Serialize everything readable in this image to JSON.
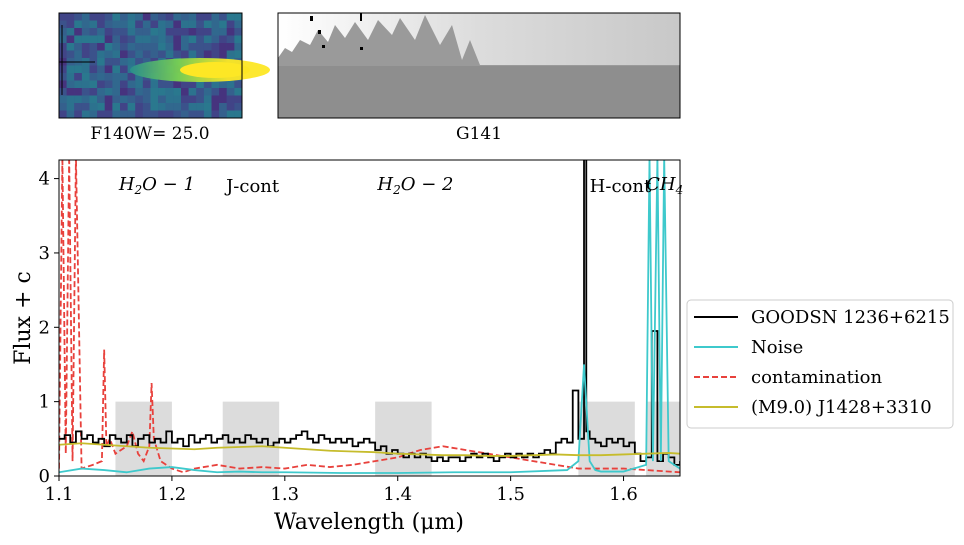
{
  "panels": {
    "image_label": "F140W= 25.0",
    "grism_label": "G141"
  },
  "chart_data": {
    "type": "line",
    "xlabel": "Wavelength (μm)",
    "ylabel": "Flux + c",
    "xlim": [
      1.1,
      1.65
    ],
    "ylim": [
      0,
      4.25
    ],
    "xticks": [
      "1.1",
      "1.2",
      "1.3",
      "1.4",
      "1.5",
      "1.6"
    ],
    "yticks": [
      "0",
      "1",
      "2",
      "3",
      "4"
    ],
    "legend_position": "outside-right",
    "bands": [
      {
        "label": "H2O − 1",
        "x0": 1.15,
        "x1": 1.2
      },
      {
        "label": "J-cont",
        "x0": 1.245,
        "x1": 1.295
      },
      {
        "label": "H2O − 2",
        "x0": 1.38,
        "x1": 1.43
      },
      {
        "label": "H-cont",
        "x0": 1.56,
        "x1": 1.61
      },
      {
        "label": "CH4",
        "x0": 1.62,
        "x1": 1.67
      }
    ],
    "series": [
      {
        "name": "GOODSN 1236+6215",
        "color": "#000000",
        "style": "steps",
        "x": [
          1.1,
          1.105,
          1.11,
          1.115,
          1.12,
          1.125,
          1.13,
          1.135,
          1.14,
          1.145,
          1.15,
          1.155,
          1.16,
          1.165,
          1.17,
          1.175,
          1.18,
          1.185,
          1.19,
          1.195,
          1.2,
          1.205,
          1.21,
          1.215,
          1.22,
          1.225,
          1.23,
          1.235,
          1.24,
          1.245,
          1.25,
          1.255,
          1.26,
          1.265,
          1.27,
          1.275,
          1.28,
          1.285,
          1.29,
          1.295,
          1.3,
          1.305,
          1.31,
          1.315,
          1.32,
          1.325,
          1.33,
          1.335,
          1.34,
          1.345,
          1.35,
          1.355,
          1.36,
          1.365,
          1.37,
          1.375,
          1.38,
          1.385,
          1.39,
          1.395,
          1.4,
          1.405,
          1.41,
          1.415,
          1.42,
          1.425,
          1.43,
          1.435,
          1.44,
          1.445,
          1.45,
          1.455,
          1.46,
          1.465,
          1.47,
          1.475,
          1.48,
          1.485,
          1.49,
          1.495,
          1.5,
          1.505,
          1.51,
          1.515,
          1.52,
          1.525,
          1.53,
          1.535,
          1.54,
          1.545,
          1.55,
          1.555,
          1.56,
          1.565,
          1.567,
          1.57,
          1.575,
          1.58,
          1.585,
          1.59,
          1.595,
          1.6,
          1.605,
          1.61,
          1.615,
          1.62,
          1.625,
          1.63,
          1.635,
          1.64,
          1.645,
          1.65
        ],
        "y": [
          0.5,
          0.55,
          0.45,
          0.6,
          0.5,
          0.55,
          0.45,
          0.5,
          0.4,
          0.55,
          0.5,
          0.45,
          0.55,
          0.4,
          0.5,
          0.55,
          0.45,
          0.5,
          0.45,
          0.6,
          0.45,
          0.5,
          0.4,
          0.55,
          0.45,
          0.5,
          0.55,
          0.45,
          0.5,
          0.55,
          0.45,
          0.5,
          0.45,
          0.55,
          0.5,
          0.45,
          0.5,
          0.4,
          0.45,
          0.5,
          0.45,
          0.5,
          0.55,
          0.6,
          0.5,
          0.45,
          0.55,
          0.5,
          0.45,
          0.5,
          0.45,
          0.5,
          0.4,
          0.45,
          0.5,
          0.45,
          0.35,
          0.4,
          0.3,
          0.35,
          0.3,
          0.25,
          0.3,
          0.25,
          0.3,
          0.25,
          0.2,
          0.25,
          0.2,
          0.25,
          0.25,
          0.2,
          0.25,
          0.3,
          0.25,
          0.3,
          0.25,
          0.2,
          0.25,
          0.3,
          0.25,
          0.3,
          0.25,
          0.3,
          0.25,
          0.3,
          0.35,
          0.3,
          0.45,
          0.5,
          0.45,
          1.15,
          0.5,
          4.3,
          0.6,
          0.5,
          0.45,
          0.4,
          0.5,
          0.45,
          0.5,
          0.4,
          0.45,
          0.3,
          0.2,
          0.25,
          1.95,
          0.2,
          0.3,
          0.25,
          0.15,
          0.2
        ]
      },
      {
        "name": "Noise",
        "color": "#3ec9cc",
        "style": "line",
        "x": [
          1.1,
          1.12,
          1.14,
          1.16,
          1.18,
          1.2,
          1.22,
          1.24,
          1.26,
          1.28,
          1.3,
          1.35,
          1.4,
          1.45,
          1.5,
          1.55,
          1.56,
          1.565,
          1.57,
          1.575,
          1.58,
          1.6,
          1.62,
          1.623,
          1.626,
          1.63,
          1.633,
          1.636,
          1.64,
          1.645,
          1.65
        ],
        "y": [
          0.05,
          0.1,
          0.08,
          0.05,
          0.1,
          0.12,
          0.08,
          0.05,
          0.06,
          0.05,
          0.05,
          0.04,
          0.04,
          0.05,
          0.05,
          0.08,
          0.2,
          1.5,
          0.2,
          0.08,
          0.06,
          0.06,
          0.15,
          4.3,
          0.2,
          4.3,
          0.2,
          4.3,
          0.2,
          0.15,
          0.1
        ]
      },
      {
        "name": "contamination",
        "color": "#e8413c",
        "style": "dashed",
        "x": [
          1.1,
          1.103,
          1.106,
          1.109,
          1.112,
          1.115,
          1.12,
          1.13,
          1.138,
          1.14,
          1.142,
          1.145,
          1.15,
          1.16,
          1.165,
          1.17,
          1.175,
          1.18,
          1.182,
          1.184,
          1.19,
          1.2,
          1.21,
          1.22,
          1.24,
          1.26,
          1.28,
          1.3,
          1.32,
          1.34,
          1.36,
          1.38,
          1.4,
          1.42,
          1.44,
          1.46,
          1.48,
          1.5,
          1.52,
          1.54,
          1.56,
          1.58,
          1.6,
          1.62,
          1.65
        ],
        "y": [
          0.1,
          4.3,
          0.3,
          4.3,
          0.2,
          4.3,
          0.1,
          0.15,
          0.2,
          1.7,
          0.4,
          0.5,
          0.3,
          0.4,
          0.6,
          0.3,
          0.2,
          0.4,
          1.25,
          0.5,
          0.2,
          0.1,
          0.05,
          0.1,
          0.15,
          0.1,
          0.12,
          0.1,
          0.15,
          0.12,
          0.15,
          0.2,
          0.25,
          0.35,
          0.4,
          0.35,
          0.3,
          0.25,
          0.2,
          0.15,
          0.1,
          0.1,
          0.1,
          0.08,
          0.05
        ]
      },
      {
        "name": "(M9.0) J1428+3310",
        "color": "#c6bc2c",
        "style": "line",
        "x": [
          1.1,
          1.12,
          1.14,
          1.16,
          1.18,
          1.2,
          1.22,
          1.24,
          1.26,
          1.28,
          1.3,
          1.32,
          1.34,
          1.36,
          1.38,
          1.4,
          1.42,
          1.44,
          1.46,
          1.48,
          1.5,
          1.52,
          1.54,
          1.56,
          1.58,
          1.6,
          1.62,
          1.64,
          1.65
        ],
        "y": [
          0.42,
          0.44,
          0.42,
          0.4,
          0.38,
          0.37,
          0.36,
          0.38,
          0.39,
          0.4,
          0.38,
          0.36,
          0.34,
          0.33,
          0.32,
          0.3,
          0.29,
          0.28,
          0.28,
          0.27,
          0.27,
          0.28,
          0.29,
          0.28,
          0.28,
          0.29,
          0.3,
          0.31,
          0.3
        ]
      }
    ]
  }
}
